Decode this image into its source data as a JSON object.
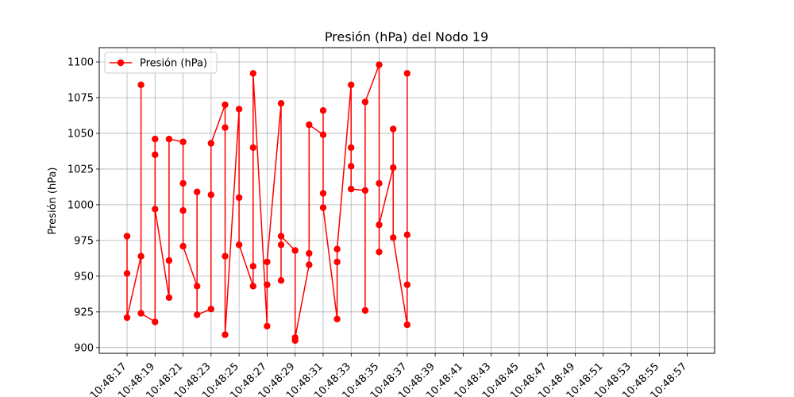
{
  "chart_data": {
    "type": "line",
    "title": "Presión (hPa) del Nodo 19",
    "xlabel": "",
    "ylabel": "Presión (hPa)",
    "ylim": [
      896,
      1110
    ],
    "yticks": [
      900,
      925,
      950,
      975,
      1000,
      1025,
      1050,
      1075,
      1100
    ],
    "xticks": [
      "10:48:17",
      "10:48:19",
      "10:48:21",
      "10:48:23",
      "10:48:25",
      "10:48:27",
      "10:48:29",
      "10:48:31",
      "10:48:33",
      "10:48:35",
      "10:48:37",
      "10:48:39",
      "10:48:41",
      "10:48:43",
      "10:48:45",
      "10:48:47",
      "10:48:49",
      "10:48:51",
      "10:48:53",
      "10:48:55",
      "10:48:57"
    ],
    "grid": true,
    "legend_position": "top-left",
    "color": "#ff0000",
    "series": [
      {
        "name": "Presión (hPa)",
        "points": [
          {
            "x": "10:48:17",
            "y": 978
          },
          {
            "x": "10:48:17",
            "y": 952
          },
          {
            "x": "10:48:17",
            "y": 921
          },
          {
            "x": "10:48:18",
            "y": 964
          },
          {
            "x": "10:48:18",
            "y": 1084
          },
          {
            "x": "10:48:18",
            "y": 924
          },
          {
            "x": "10:48:19",
            "y": 918
          },
          {
            "x": "10:48:19",
            "y": 1046
          },
          {
            "x": "10:48:19",
            "y": 1035
          },
          {
            "x": "10:48:19",
            "y": 997
          },
          {
            "x": "10:48:20",
            "y": 935
          },
          {
            "x": "10:48:20",
            "y": 961
          },
          {
            "x": "10:48:20",
            "y": 1046
          },
          {
            "x": "10:48:21",
            "y": 1044
          },
          {
            "x": "10:48:21",
            "y": 1015
          },
          {
            "x": "10:48:21",
            "y": 996
          },
          {
            "x": "10:48:21",
            "y": 971
          },
          {
            "x": "10:48:22",
            "y": 943
          },
          {
            "x": "10:48:22",
            "y": 1009
          },
          {
            "x": "10:48:22",
            "y": 923
          },
          {
            "x": "10:48:23",
            "y": 927
          },
          {
            "x": "10:48:23",
            "y": 1007
          },
          {
            "x": "10:48:23",
            "y": 1043
          },
          {
            "x": "10:48:24",
            "y": 1070
          },
          {
            "x": "10:48:24",
            "y": 1054
          },
          {
            "x": "10:48:24",
            "y": 964
          },
          {
            "x": "10:48:24",
            "y": 909
          },
          {
            "x": "10:48:25",
            "y": 1067
          },
          {
            "x": "10:48:25",
            "y": 1005
          },
          {
            "x": "10:48:25",
            "y": 972
          },
          {
            "x": "10:48:26",
            "y": 943
          },
          {
            "x": "10:48:26",
            "y": 957
          },
          {
            "x": "10:48:26",
            "y": 1040
          },
          {
            "x": "10:48:26",
            "y": 1092
          },
          {
            "x": "10:48:27",
            "y": 915
          },
          {
            "x": "10:48:27",
            "y": 944
          },
          {
            "x": "10:48:27",
            "y": 960
          },
          {
            "x": "10:48:28",
            "y": 1071
          },
          {
            "x": "10:48:28",
            "y": 972
          },
          {
            "x": "10:48:28",
            "y": 947
          },
          {
            "x": "10:48:28",
            "y": 978
          },
          {
            "x": "10:48:29",
            "y": 968
          },
          {
            "x": "10:48:29",
            "y": 905
          },
          {
            "x": "10:48:29",
            "y": 907
          },
          {
            "x": "10:48:30",
            "y": 958
          },
          {
            "x": "10:48:30",
            "y": 966
          },
          {
            "x": "10:48:30",
            "y": 1056
          },
          {
            "x": "10:48:31",
            "y": 1049
          },
          {
            "x": "10:48:31",
            "y": 1066
          },
          {
            "x": "10:48:31",
            "y": 1008
          },
          {
            "x": "10:48:31",
            "y": 998
          },
          {
            "x": "10:48:32",
            "y": 920
          },
          {
            "x": "10:48:32",
            "y": 960
          },
          {
            "x": "10:48:32",
            "y": 969
          },
          {
            "x": "10:48:33",
            "y": 1084
          },
          {
            "x": "10:48:33",
            "y": 1040
          },
          {
            "x": "10:48:33",
            "y": 1027
          },
          {
            "x": "10:48:33",
            "y": 1011
          },
          {
            "x": "10:48:34",
            "y": 1010
          },
          {
            "x": "10:48:34",
            "y": 926
          },
          {
            "x": "10:48:34",
            "y": 1072
          },
          {
            "x": "10:48:35",
            "y": 1098
          },
          {
            "x": "10:48:35",
            "y": 1015
          },
          {
            "x": "10:48:35",
            "y": 967
          },
          {
            "x": "10:48:35",
            "y": 986
          },
          {
            "x": "10:48:36",
            "y": 1026
          },
          {
            "x": "10:48:36",
            "y": 1053
          },
          {
            "x": "10:48:36",
            "y": 977
          },
          {
            "x": "10:48:37",
            "y": 916
          },
          {
            "x": "10:48:37",
            "y": 944
          },
          {
            "x": "10:48:37",
            "y": 979
          },
          {
            "x": "10:48:37",
            "y": 1092
          }
        ]
      }
    ]
  }
}
